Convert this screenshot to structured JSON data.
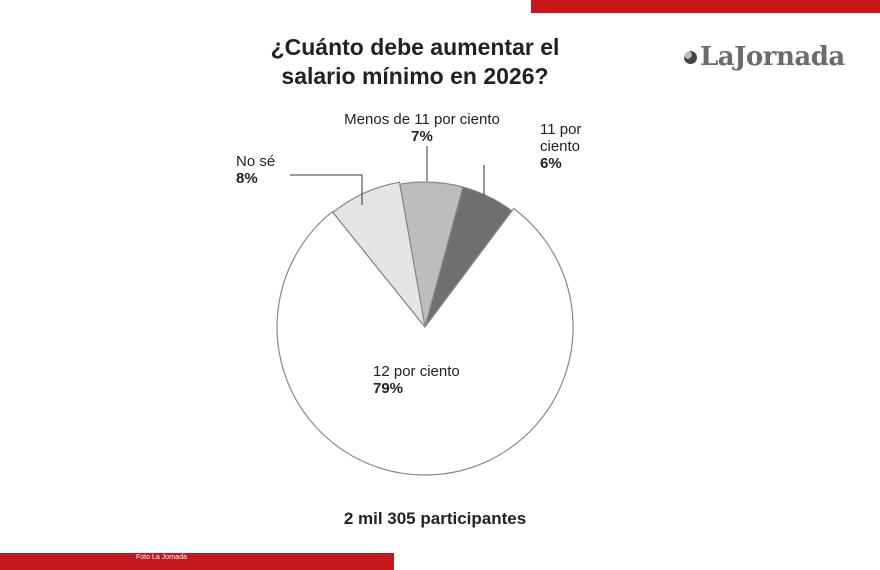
{
  "brand": {
    "logo_text": "LaJornada",
    "accent_color": "#c8161d"
  },
  "credit": "Foto La Jornada",
  "footer": "2 mil 305 participantes",
  "chart_data": {
    "type": "pie",
    "title": "¿Cuánto debe aumentar el salario mínimo en 2026?",
    "slices": [
      {
        "label": "Menos de 11 por ciento",
        "value": 7,
        "value_label": "7%",
        "color": "#bdbdbd"
      },
      {
        "label": "11 por ciento",
        "value": 6,
        "value_label": "6%",
        "color": "#6f6f6f"
      },
      {
        "label": "12 por ciento",
        "value": 79,
        "value_label": "79%",
        "color": "#ffffff"
      },
      {
        "label": "No sé",
        "value": 8,
        "value_label": "8%",
        "color": "#e4e4e4"
      }
    ]
  }
}
